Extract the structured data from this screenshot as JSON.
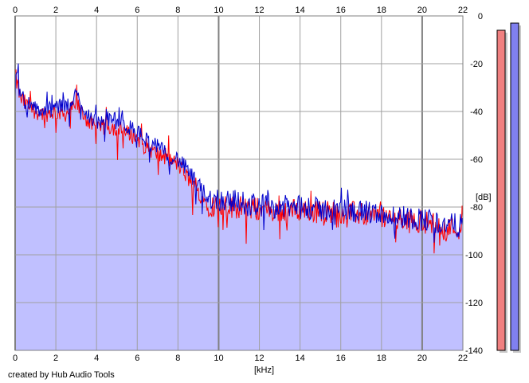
{
  "credit": "created by Hub Audio Tools",
  "colors": {
    "fill": "#c0c0ff",
    "left_channel": "#ff0000",
    "right_channel": "#0000cc",
    "grid": "#a0a0a0",
    "major_grid": "#808080",
    "meter_left": "#f08080",
    "meter_right": "#8080f0"
  },
  "meters": {
    "left_level_db": -6,
    "right_level_db": -3
  },
  "chart_data": {
    "type": "area",
    "title": "",
    "xlabel": "[kHz]",
    "ylabel": "[dB]",
    "xlim": [
      0,
      22
    ],
    "ylim": [
      -140,
      0
    ],
    "x_ticks": [
      "0",
      "2",
      "4",
      "6",
      "8",
      "10",
      "12",
      "14",
      "16",
      "18",
      "20",
      "22"
    ],
    "y_ticks": [
      "0",
      "-20",
      "-40",
      "-60",
      "-80",
      "-100",
      "-120",
      "-140"
    ],
    "grid": true,
    "legend": "none",
    "x": [
      0,
      0.25,
      0.5,
      1,
      1.5,
      2,
      2.5,
      3,
      3.5,
      4,
      4.5,
      5,
      5.5,
      6,
      6.5,
      7,
      7.5,
      8,
      8.5,
      9,
      9.5,
      10,
      10.5,
      11,
      12,
      13,
      14,
      15,
      16,
      17,
      18,
      19,
      20,
      21,
      22
    ],
    "series": [
      {
        "values": [
          -25,
          -34,
          -37,
          -40,
          -41,
          -40,
          -41,
          -37,
          -43,
          -48,
          -46,
          -47,
          -49,
          -51,
          -55,
          -58,
          -60,
          -62,
          -68,
          -74,
          -79,
          -80,
          -80,
          -80,
          -81,
          -82,
          -81,
          -82,
          -82,
          -83,
          -84,
          -86,
          -86,
          -88,
          -89
        ]
      },
      {
        "values": [
          -22,
          -32,
          -36,
          -39,
          -40,
          -38,
          -38,
          -33,
          -40,
          -45,
          -43,
          -44,
          -46,
          -49,
          -52,
          -55,
          -58,
          -60,
          -65,
          -71,
          -76,
          -77,
          -77,
          -78,
          -79,
          -80,
          -80,
          -81,
          -81,
          -82,
          -83,
          -84,
          -85,
          -87,
          -88
        ]
      }
    ]
  }
}
